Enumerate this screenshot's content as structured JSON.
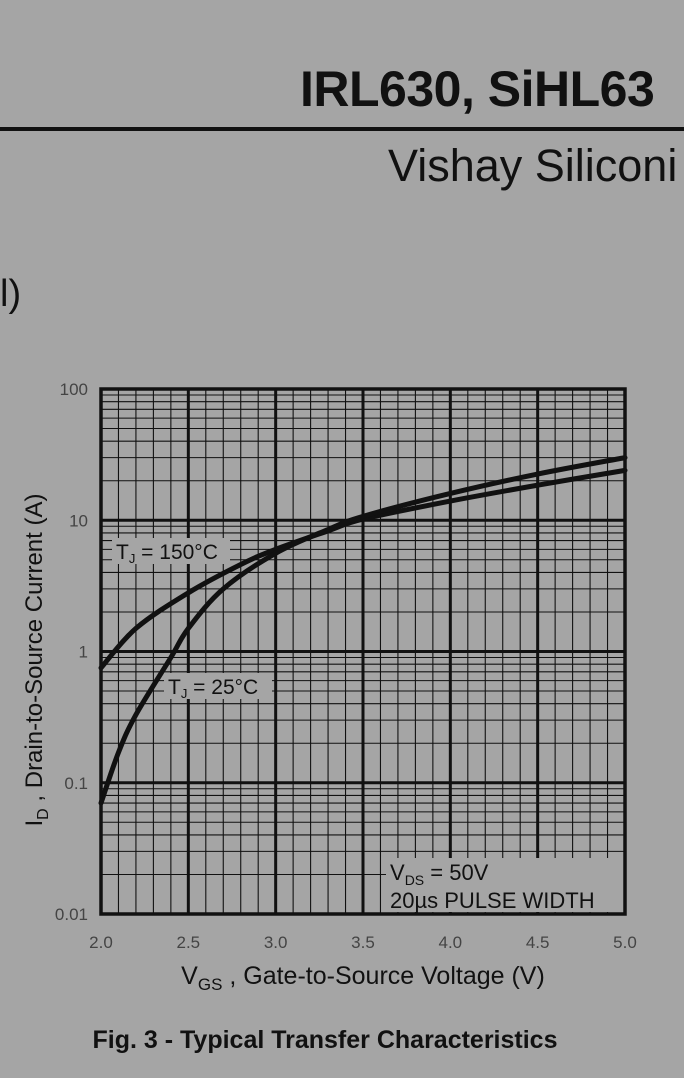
{
  "page": {
    "title": "IRL630, SiHL63",
    "subtitle": "Vishay Siliconi",
    "fragment": "l)"
  },
  "chart_data": {
    "type": "line",
    "caption": "Fig. 3 - Typical Transfer Characteristics",
    "xlabel_main": "V",
    "xlabel_sub": "GS",
    "xlabel_rest": " , Gate-to-Source Voltage (V)",
    "ylabel_main": "I",
    "ylabel_sub": "D",
    "ylabel_rest": " , Drain-to-Source Current (A)",
    "xlim": [
      2.0,
      5.0
    ],
    "ylim": [
      0.01,
      100
    ],
    "yscale": "log",
    "x_ticks": [
      "2.0",
      "2.5",
      "3.0",
      "3.5",
      "4.0",
      "4.5",
      "5.0"
    ],
    "y_ticks": [
      "0.01",
      "0.1",
      "1",
      "10",
      "100"
    ],
    "grid": true,
    "series": [
      {
        "name": "TJ = 150°C",
        "label_main": "T",
        "label_sub": "J",
        "label_rest": " = 150°C",
        "x": [
          2.0,
          2.2,
          2.5,
          2.8,
          3.0,
          3.3,
          3.5,
          4.0,
          4.5,
          5.0
        ],
        "y": [
          0.75,
          1.5,
          2.8,
          4.6,
          6.0,
          8.3,
          10.2,
          14.0,
          18.5,
          24.0
        ]
      },
      {
        "name": "TJ = 25°C",
        "label_main": "T",
        "label_sub": "J",
        "label_rest": " = 25°C",
        "x": [
          2.0,
          2.1,
          2.2,
          2.4,
          2.5,
          2.7,
          3.0,
          3.3,
          3.5,
          4.0,
          4.5,
          5.0
        ],
        "y": [
          0.07,
          0.17,
          0.33,
          0.9,
          1.5,
          3.0,
          5.6,
          8.5,
          10.7,
          16.0,
          22.5,
          30.0
        ]
      }
    ],
    "annotation_line1_main": "V",
    "annotation_line1_sub": "DS",
    "annotation_line1_rest": " = 50V",
    "annotation_line2": "20µs PULSE WIDTH"
  }
}
